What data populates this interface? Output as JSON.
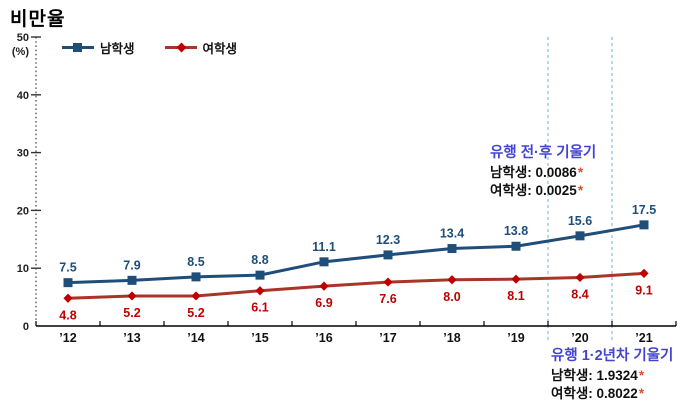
{
  "title": "비만율",
  "y_axis": {
    "unit_label": "(%)",
    "ticks": [
      0,
      10,
      20,
      30,
      40,
      50
    ]
  },
  "colors": {
    "male_series": "#1f4e79",
    "female_line": "#a93529",
    "female_label": "#c00000",
    "reference_line": "#9dc3e6",
    "annotation_heading": "#4345d0",
    "star": "#e2492f",
    "axis": "#000000"
  },
  "chart_data": {
    "type": "line",
    "title": "비만율",
    "ylabel": "(%)",
    "ylim": [
      0,
      50
    ],
    "grid": false,
    "legend_position": "top-left",
    "categories": [
      "’12",
      "’13",
      "’14",
      "’15",
      "’16",
      "’17",
      "’18",
      "’19",
      "’20",
      "’21"
    ],
    "series": [
      {
        "name": "남학생",
        "values": [
          7.5,
          7.9,
          8.5,
          8.8,
          11.1,
          12.3,
          13.4,
          13.8,
          15.6,
          17.5
        ],
        "labels": [
          "7.5",
          "7.9",
          "8.5",
          "8.8",
          "11.1",
          "12.3",
          "13.4",
          "13.8",
          "15.6",
          "17.5"
        ],
        "color": "#1f4e79",
        "marker_color": "#1f4e79",
        "label_color": "#1f4e79",
        "marker": "square",
        "label_position": "above"
      },
      {
        "name": "여학생",
        "values": [
          4.8,
          5.2,
          5.2,
          6.1,
          6.9,
          7.6,
          8.0,
          8.1,
          8.4,
          9.1
        ],
        "labels": [
          "4.8",
          "5.2",
          "5.2",
          "6.1",
          "6.9",
          "7.6",
          "8.0",
          "8.1",
          "8.4",
          "9.1"
        ],
        "color": "#a93529",
        "marker_color": "#c00000",
        "label_color": "#c00000",
        "marker": "diamond",
        "label_position": "below"
      }
    ],
    "reference_lines": {
      "color": "#9dc3e6",
      "style": "dashed",
      "between_categories": [
        [
          "’19",
          "’20"
        ],
        [
          "’20",
          "’21"
        ]
      ]
    }
  },
  "annotations": {
    "pre_post": {
      "heading": "유행 전·후 기울기",
      "rows": [
        {
          "text": "남학생: 0.0086",
          "star": "*"
        },
        {
          "text": "여학생: 0.0025",
          "star": "*"
        }
      ]
    },
    "year_1_2": {
      "heading": "유행 1·2년차 기울기",
      "rows": [
        {
          "text": "남학생: 1.9324",
          "star": "*"
        },
        {
          "text": "여학생: 0.8022",
          "star": "*"
        }
      ]
    }
  }
}
